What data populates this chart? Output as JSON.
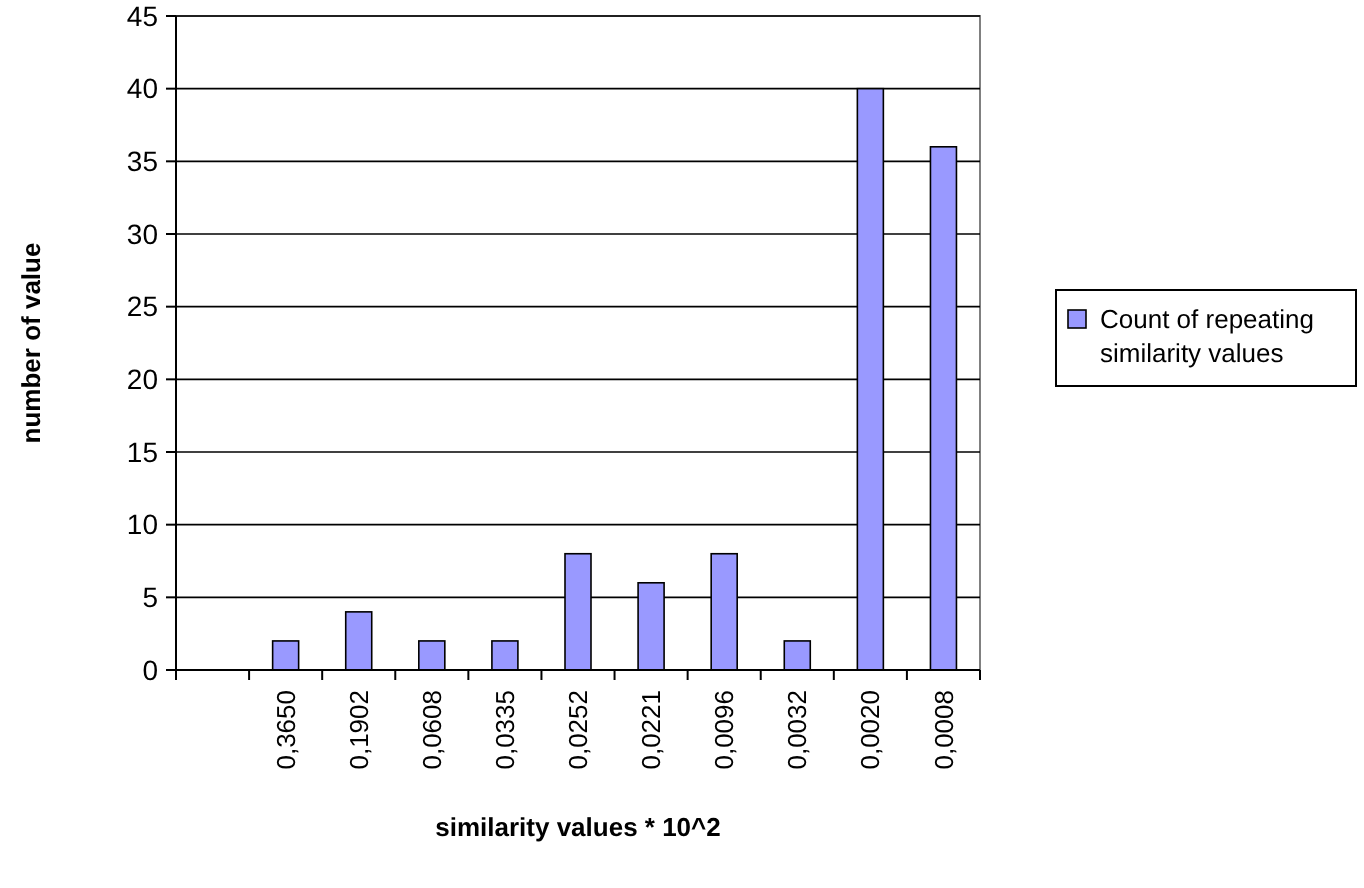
{
  "chart_data": {
    "type": "bar",
    "xlabel": "similarity values * 10^2",
    "ylabel": "number of value",
    "categories": [
      null,
      "0,3650",
      "0,1902",
      "0,0608",
      "0,0335",
      "0,0252",
      "0,0221",
      "0,0096",
      "0,0032",
      "0,0020",
      "0,0008"
    ],
    "series": [
      {
        "name": "Count of repeating similarity values",
        "color": "#9999ff",
        "values": [
          null,
          2,
          4,
          2,
          2,
          8,
          6,
          8,
          2,
          40,
          36
        ]
      }
    ],
    "ylim": [
      0,
      45
    ],
    "yticks": [
      0,
      5,
      10,
      15,
      20,
      25,
      30,
      35,
      40,
      45
    ],
    "grid": "y",
    "legend": "right"
  }
}
